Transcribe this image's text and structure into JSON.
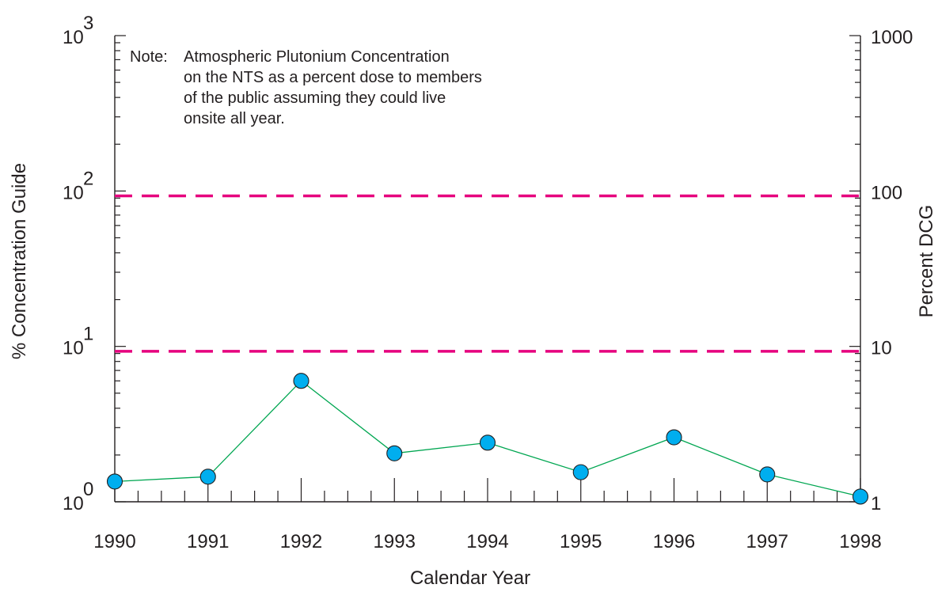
{
  "chart_data": {
    "type": "line",
    "xlabel": "Calendar Year",
    "ylabel_left": "% Concentration Guide",
    "ylabel_right": "Percent DCG",
    "x": [
      1990,
      1991,
      1992,
      1993,
      1994,
      1995,
      1996,
      1997,
      1998
    ],
    "x_tick_labels": [
      "1990",
      "1991",
      "1992",
      "1993",
      "1994",
      "1995",
      "1996",
      "1997",
      "1998"
    ],
    "xlim": [
      1990,
      1998
    ],
    "left_axis": {
      "scale": "log",
      "ylim": [
        1,
        1000
      ],
      "ticks": [
        {
          "base": "10",
          "exp": "0",
          "value": 1
        },
        {
          "base": "10",
          "exp": "1",
          "value": 10
        },
        {
          "base": "10",
          "exp": "2",
          "value": 100
        },
        {
          "base": "10",
          "exp": "3",
          "value": 1000
        }
      ]
    },
    "right_axis": {
      "scale": "log",
      "ylim": [
        1,
        1000
      ],
      "ticks": [
        {
          "label": "1",
          "value": 1
        },
        {
          "label": "10",
          "value": 10
        },
        {
          "label": "100",
          "value": 100
        },
        {
          "label": "1000",
          "value": 1000
        }
      ]
    },
    "series": [
      {
        "values": [
          1.35,
          1.45,
          6.0,
          2.05,
          2.4,
          1.55,
          2.6,
          1.5,
          1.08
        ],
        "line_color": "#00a651",
        "marker_color": "#00aeef"
      }
    ],
    "reference_lines": [
      {
        "value": 9.3,
        "color": "#e6007e",
        "style": "dashed"
      },
      {
        "value": 93,
        "color": "#e6007e",
        "style": "dashed"
      }
    ],
    "note": {
      "prefix": "Note:",
      "lines": [
        "Atmospheric Plutonium Concentration",
        "on the NTS as a percent dose to members",
        "of the public assuming they could live",
        "onsite all year."
      ]
    },
    "grid": false
  }
}
